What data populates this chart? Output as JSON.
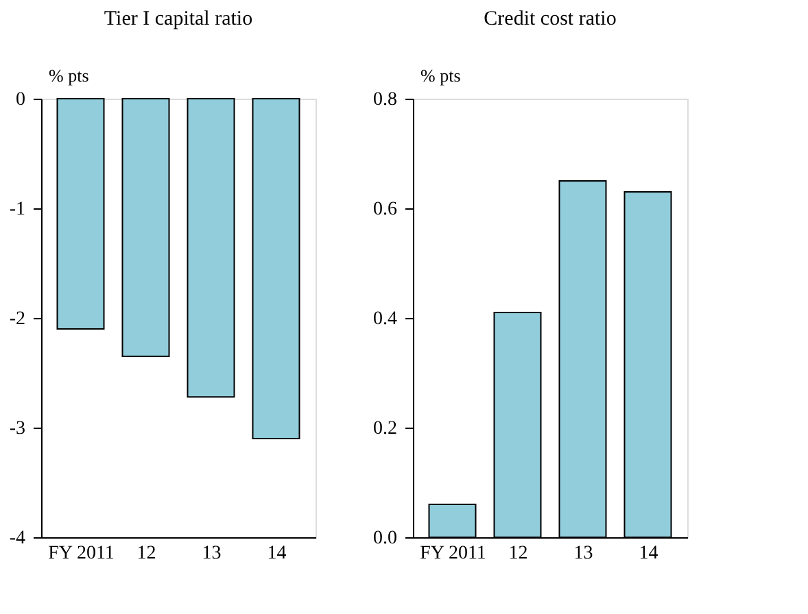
{
  "chart_data": [
    {
      "type": "bar",
      "title": "Tier I capital ratio",
      "ylabel": "% pts",
      "categories": [
        "FY 2011",
        "12",
        "13",
        "14"
      ],
      "values": [
        -2.1,
        -2.35,
        -2.72,
        -3.1
      ],
      "color": "#92cddc",
      "ylim": [
        -4,
        0
      ],
      "yticks": [
        -4,
        -3,
        -2,
        -1,
        0
      ],
      "grid": false
    },
    {
      "type": "bar",
      "title": "Credit cost ratio",
      "ylabel": "% pts",
      "categories": [
        "FY 2011",
        "12",
        "13",
        "14"
      ],
      "values": [
        0.06,
        0.41,
        0.65,
        0.63
      ],
      "color": "#92cddc",
      "ylim": [
        0,
        0.8
      ],
      "yticks": [
        {
          "value": 0,
          "label": "0.0"
        },
        {
          "value": 0.2,
          "label": "0.2"
        },
        {
          "value": 0.4,
          "label": "0.4"
        },
        {
          "value": 0.6,
          "label": "0.6"
        },
        {
          "value": 0.8,
          "label": "0.8"
        }
      ],
      "grid": false
    }
  ]
}
